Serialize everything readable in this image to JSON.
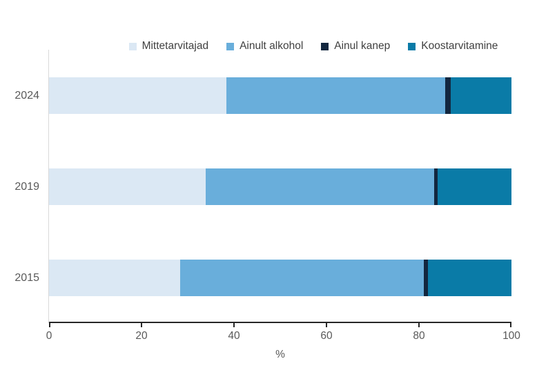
{
  "chart_data": {
    "type": "bar",
    "orientation": "horizontal",
    "stacked": true,
    "title": "",
    "categories": [
      "2024",
      "2019",
      "2015"
    ],
    "series": [
      {
        "name": "Mittetarvitajad",
        "color": "#dbe8f4",
        "values": [
          38.4,
          33.9,
          28.4
        ]
      },
      {
        "name": "Ainult alkohol",
        "color": "#69aedb",
        "values": [
          47.3,
          49.4,
          52.6
        ]
      },
      {
        "name": "Ainul kanep",
        "color": "#13273f",
        "values": [
          1.1,
          0.8,
          0.9
        ]
      },
      {
        "name": "Koostarvitamine",
        "color": "#0a7ba7",
        "values": [
          13.2,
          15.9,
          18.1
        ]
      }
    ],
    "xlabel": "%",
    "xlim": [
      0,
      100
    ],
    "xticks": [
      0,
      20,
      40,
      60,
      80,
      100
    ],
    "legend_position": "top",
    "grid": false,
    "colors": {
      "axis_line": "#262626",
      "tick_label": "#595959",
      "category_label": "#595959",
      "legend_text": "#404040",
      "zero_baseline": "#d9d9d9",
      "background": "#ffffff"
    }
  }
}
